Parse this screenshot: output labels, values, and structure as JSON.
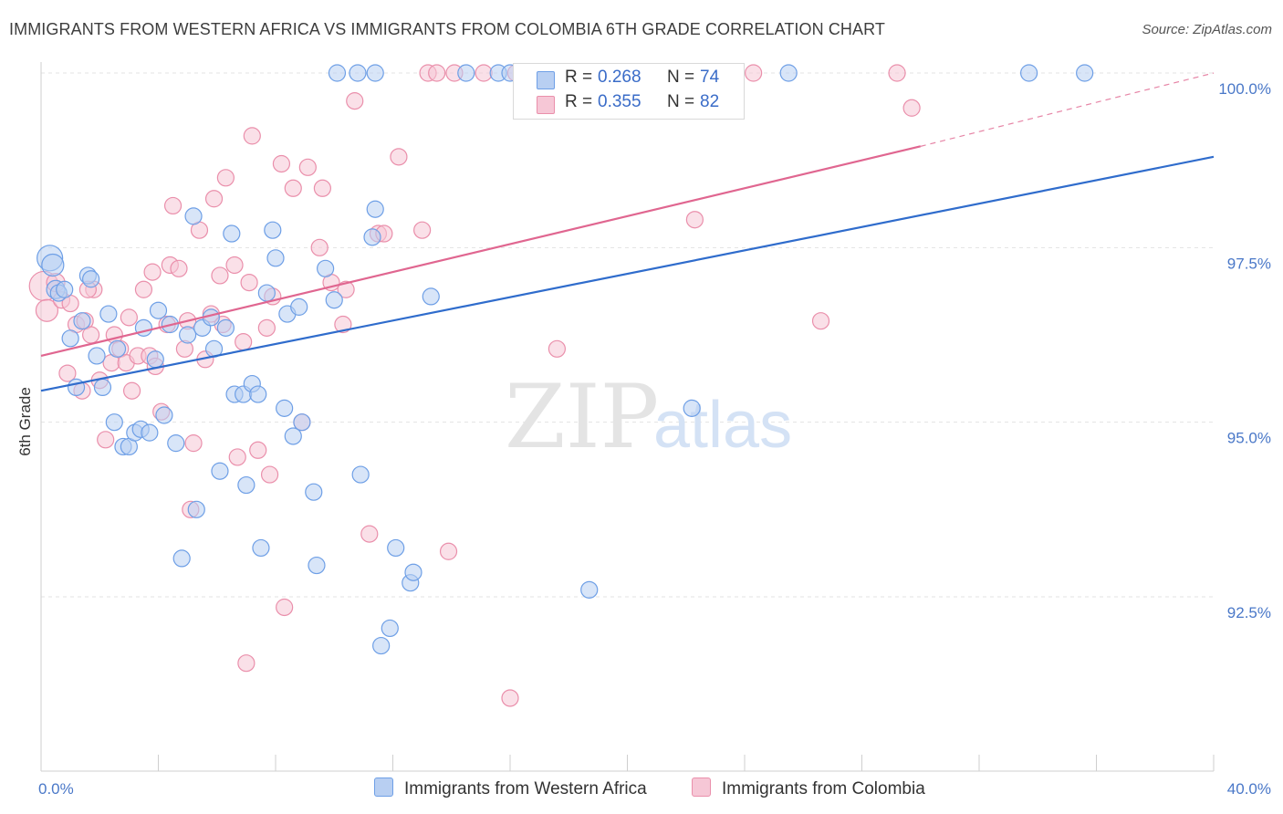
{
  "title": "IMMIGRANTS FROM WESTERN AFRICA VS IMMIGRANTS FROM COLOMBIA 6TH GRADE CORRELATION CHART",
  "source": "Source: ZipAtlas.com",
  "watermark": {
    "zip": "ZIP",
    "atlas": "atlas"
  },
  "legend": {
    "rows": [
      {
        "r_label": "R =",
        "r_value": "0.268",
        "n_label": "N =",
        "n_value": "74"
      },
      {
        "r_label": "R =",
        "r_value": "0.355",
        "n_label": "N =",
        "n_value": "82"
      }
    ]
  },
  "chart_data": {
    "type": "scatter",
    "title": "IMMIGRANTS FROM WESTERN AFRICA VS IMMIGRANTS FROM COLOMBIA 6TH GRADE CORRELATION CHART",
    "xlabel": "",
    "ylabel": "6th Grade",
    "xlim": [
      0,
      40
    ],
    "ylim": [
      90.3,
      100.4
    ],
    "x_tick_labels": [
      "0.0%",
      "40.0%"
    ],
    "y_ticks": [
      92.5,
      95.0,
      97.5,
      100.0
    ],
    "y_tick_labels": [
      "92.5%",
      "95.0%",
      "97.5%",
      "100.0%"
    ],
    "grid": true,
    "legend_position": "top-center",
    "colors": {
      "blue": "#6e9fe6",
      "blue_fill": "#b8cff2",
      "blue_line": "#2f6ccc",
      "pink": "#ea8fab",
      "pink_fill": "#f6c7d6",
      "pink_line": "#e06690"
    },
    "series": [
      {
        "name": "Immigrants from Western Africa",
        "color": "#2f6ccc",
        "r": 0.268,
        "n": 74,
        "trend": {
          "x": [
            0,
            40
          ],
          "y": [
            95.45,
            98.8
          ]
        },
        "points": [
          {
            "x": 0.3,
            "y": 97.35,
            "s": 14
          },
          {
            "x": 0.4,
            "y": 97.25,
            "s": 12
          },
          {
            "x": 0.5,
            "y": 96.9,
            "s": 10
          },
          {
            "x": 0.6,
            "y": 96.85,
            "s": 9
          },
          {
            "x": 0.8,
            "y": 96.9,
            "s": 9
          },
          {
            "x": 1.0,
            "y": 96.2,
            "s": 9
          },
          {
            "x": 1.2,
            "y": 95.5,
            "s": 9
          },
          {
            "x": 1.4,
            "y": 96.45,
            "s": 9
          },
          {
            "x": 1.6,
            "y": 97.1,
            "s": 9
          },
          {
            "x": 1.7,
            "y": 97.05,
            "s": 9
          },
          {
            "x": 1.9,
            "y": 95.95,
            "s": 9
          },
          {
            "x": 2.1,
            "y": 95.5,
            "s": 9
          },
          {
            "x": 2.3,
            "y": 96.55,
            "s": 9
          },
          {
            "x": 2.5,
            "y": 95.0,
            "s": 9
          },
          {
            "x": 2.6,
            "y": 96.05,
            "s": 9
          },
          {
            "x": 2.8,
            "y": 94.65,
            "s": 9
          },
          {
            "x": 3.0,
            "y": 94.65,
            "s": 9
          },
          {
            "x": 3.2,
            "y": 94.85,
            "s": 9
          },
          {
            "x": 3.4,
            "y": 94.9,
            "s": 9
          },
          {
            "x": 3.5,
            "y": 96.35,
            "s": 9
          },
          {
            "x": 3.7,
            "y": 94.85,
            "s": 9
          },
          {
            "x": 3.9,
            "y": 95.9,
            "s": 9
          },
          {
            "x": 4.0,
            "y": 96.6,
            "s": 9
          },
          {
            "x": 4.2,
            "y": 95.1,
            "s": 9
          },
          {
            "x": 4.4,
            "y": 96.4,
            "s": 9
          },
          {
            "x": 4.6,
            "y": 94.7,
            "s": 9
          },
          {
            "x": 4.8,
            "y": 93.05,
            "s": 9
          },
          {
            "x": 5.0,
            "y": 96.25,
            "s": 9
          },
          {
            "x": 5.2,
            "y": 97.95,
            "s": 9
          },
          {
            "x": 5.3,
            "y": 93.75,
            "s": 9
          },
          {
            "x": 5.5,
            "y": 96.35,
            "s": 9
          },
          {
            "x": 5.8,
            "y": 96.5,
            "s": 9
          },
          {
            "x": 5.9,
            "y": 96.05,
            "s": 9
          },
          {
            "x": 6.1,
            "y": 94.3,
            "s": 9
          },
          {
            "x": 6.3,
            "y": 96.35,
            "s": 9
          },
          {
            "x": 6.5,
            "y": 97.7,
            "s": 9
          },
          {
            "x": 6.6,
            "y": 95.4,
            "s": 9
          },
          {
            "x": 6.9,
            "y": 95.4,
            "s": 9
          },
          {
            "x": 7.0,
            "y": 94.1,
            "s": 9
          },
          {
            "x": 7.2,
            "y": 95.55,
            "s": 9
          },
          {
            "x": 7.4,
            "y": 95.4,
            "s": 9
          },
          {
            "x": 7.5,
            "y": 93.2,
            "s": 9
          },
          {
            "x": 7.7,
            "y": 96.85,
            "s": 9
          },
          {
            "x": 7.9,
            "y": 97.75,
            "s": 9
          },
          {
            "x": 8.0,
            "y": 97.35,
            "s": 9
          },
          {
            "x": 8.3,
            "y": 95.2,
            "s": 9
          },
          {
            "x": 8.4,
            "y": 96.55,
            "s": 9
          },
          {
            "x": 8.6,
            "y": 94.8,
            "s": 9
          },
          {
            "x": 8.8,
            "y": 96.65,
            "s": 9
          },
          {
            "x": 8.9,
            "y": 95.0,
            "s": 9
          },
          {
            "x": 9.3,
            "y": 94.0,
            "s": 9
          },
          {
            "x": 9.4,
            "y": 92.95,
            "s": 9
          },
          {
            "x": 9.7,
            "y": 97.2,
            "s": 9
          },
          {
            "x": 10.0,
            "y": 96.75,
            "s": 9
          },
          {
            "x": 10.1,
            "y": 100.0,
            "s": 9
          },
          {
            "x": 10.8,
            "y": 100.0,
            "s": 9
          },
          {
            "x": 10.9,
            "y": 94.25,
            "s": 9
          },
          {
            "x": 11.3,
            "y": 97.65,
            "s": 9
          },
          {
            "x": 11.4,
            "y": 100.0,
            "s": 9
          },
          {
            "x": 11.4,
            "y": 98.05,
            "s": 9
          },
          {
            "x": 11.6,
            "y": 91.8,
            "s": 9
          },
          {
            "x": 11.9,
            "y": 92.05,
            "s": 9
          },
          {
            "x": 12.1,
            "y": 93.2,
            "s": 9
          },
          {
            "x": 12.6,
            "y": 92.7,
            "s": 9
          },
          {
            "x": 12.7,
            "y": 92.85,
            "s": 9
          },
          {
            "x": 13.3,
            "y": 96.8,
            "s": 9
          },
          {
            "x": 14.5,
            "y": 100.0,
            "s": 9
          },
          {
            "x": 15.6,
            "y": 100.0,
            "s": 9
          },
          {
            "x": 16.0,
            "y": 100.0,
            "s": 9
          },
          {
            "x": 18.7,
            "y": 92.6,
            "s": 9
          },
          {
            "x": 22.2,
            "y": 95.2,
            "s": 9
          },
          {
            "x": 25.5,
            "y": 100.0,
            "s": 9
          },
          {
            "x": 33.7,
            "y": 100.0,
            "s": 9
          },
          {
            "x": 35.6,
            "y": 100.0,
            "s": 9
          }
        ]
      },
      {
        "name": "Immigrants from Colombia",
        "color": "#e06690",
        "r": 0.355,
        "n": 82,
        "trend": {
          "x": [
            0,
            30
          ],
          "y": [
            95.95,
            98.95
          ]
        },
        "trend_dashed": {
          "x": [
            30,
            40
          ],
          "y": [
            98.95,
            100.0
          ]
        },
        "points": [
          {
            "x": 0.1,
            "y": 96.95,
            "s": 16
          },
          {
            "x": 0.2,
            "y": 96.6,
            "s": 12
          },
          {
            "x": 0.5,
            "y": 97.0,
            "s": 10
          },
          {
            "x": 0.7,
            "y": 96.75,
            "s": 9
          },
          {
            "x": 0.9,
            "y": 95.7,
            "s": 9
          },
          {
            "x": 1.0,
            "y": 96.7,
            "s": 9
          },
          {
            "x": 1.2,
            "y": 96.4,
            "s": 9
          },
          {
            "x": 1.4,
            "y": 95.45,
            "s": 9
          },
          {
            "x": 1.5,
            "y": 96.45,
            "s": 9
          },
          {
            "x": 1.7,
            "y": 96.25,
            "s": 9
          },
          {
            "x": 1.8,
            "y": 96.9,
            "s": 9
          },
          {
            "x": 2.0,
            "y": 95.6,
            "s": 9
          },
          {
            "x": 2.2,
            "y": 94.75,
            "s": 9
          },
          {
            "x": 2.4,
            "y": 95.85,
            "s": 9
          },
          {
            "x": 2.5,
            "y": 96.25,
            "s": 9
          },
          {
            "x": 2.7,
            "y": 96.05,
            "s": 9
          },
          {
            "x": 2.9,
            "y": 95.85,
            "s": 9
          },
          {
            "x": 3.0,
            "y": 96.5,
            "s": 9
          },
          {
            "x": 3.1,
            "y": 95.45,
            "s": 9
          },
          {
            "x": 3.3,
            "y": 95.95,
            "s": 9
          },
          {
            "x": 3.5,
            "y": 96.9,
            "s": 9
          },
          {
            "x": 3.7,
            "y": 95.95,
            "s": 9
          },
          {
            "x": 3.8,
            "y": 97.15,
            "s": 9
          },
          {
            "x": 3.9,
            "y": 95.8,
            "s": 9
          },
          {
            "x": 4.1,
            "y": 95.15,
            "s": 9
          },
          {
            "x": 4.3,
            "y": 96.4,
            "s": 9
          },
          {
            "x": 4.4,
            "y": 97.25,
            "s": 9
          },
          {
            "x": 4.5,
            "y": 98.1,
            "s": 9
          },
          {
            "x": 4.7,
            "y": 97.2,
            "s": 9
          },
          {
            "x": 4.9,
            "y": 96.05,
            "s": 9
          },
          {
            "x": 5.0,
            "y": 96.45,
            "s": 9
          },
          {
            "x": 5.1,
            "y": 93.75,
            "s": 9
          },
          {
            "x": 5.2,
            "y": 94.7,
            "s": 9
          },
          {
            "x": 5.4,
            "y": 97.75,
            "s": 9
          },
          {
            "x": 5.6,
            "y": 95.9,
            "s": 9
          },
          {
            "x": 5.8,
            "y": 96.55,
            "s": 9
          },
          {
            "x": 5.9,
            "y": 98.2,
            "s": 9
          },
          {
            "x": 6.1,
            "y": 97.1,
            "s": 9
          },
          {
            "x": 6.2,
            "y": 96.4,
            "s": 9
          },
          {
            "x": 6.3,
            "y": 98.5,
            "s": 9
          },
          {
            "x": 6.6,
            "y": 97.25,
            "s": 9
          },
          {
            "x": 6.7,
            "y": 94.5,
            "s": 9
          },
          {
            "x": 6.9,
            "y": 96.15,
            "s": 9
          },
          {
            "x": 7.1,
            "y": 97.0,
            "s": 9
          },
          {
            "x": 7.2,
            "y": 99.1,
            "s": 9
          },
          {
            "x": 7.4,
            "y": 94.6,
            "s": 9
          },
          {
            "x": 7.7,
            "y": 96.35,
            "s": 9
          },
          {
            "x": 7.8,
            "y": 94.25,
            "s": 9
          },
          {
            "x": 7.9,
            "y": 96.8,
            "s": 9
          },
          {
            "x": 8.2,
            "y": 98.7,
            "s": 9
          },
          {
            "x": 8.3,
            "y": 92.35,
            "s": 9
          },
          {
            "x": 8.6,
            "y": 98.35,
            "s": 9
          },
          {
            "x": 8.9,
            "y": 95.0,
            "s": 9
          },
          {
            "x": 9.1,
            "y": 98.65,
            "s": 9
          },
          {
            "x": 9.5,
            "y": 97.5,
            "s": 9
          },
          {
            "x": 9.6,
            "y": 98.35,
            "s": 9
          },
          {
            "x": 9.9,
            "y": 97.0,
            "s": 9
          },
          {
            "x": 10.3,
            "y": 96.4,
            "s": 9
          },
          {
            "x": 10.4,
            "y": 96.9,
            "s": 9
          },
          {
            "x": 10.7,
            "y": 99.6,
            "s": 9
          },
          {
            "x": 11.2,
            "y": 93.4,
            "s": 9
          },
          {
            "x": 11.5,
            "y": 97.7,
            "s": 9
          },
          {
            "x": 11.7,
            "y": 97.7,
            "s": 9
          },
          {
            "x": 12.2,
            "y": 98.8,
            "s": 9
          },
          {
            "x": 13.0,
            "y": 97.75,
            "s": 9
          },
          {
            "x": 13.2,
            "y": 100.0,
            "s": 9
          },
          {
            "x": 13.5,
            "y": 100.0,
            "s": 9
          },
          {
            "x": 13.9,
            "y": 93.15,
            "s": 9
          },
          {
            "x": 14.1,
            "y": 100.0,
            "s": 9
          },
          {
            "x": 15.1,
            "y": 100.0,
            "s": 9
          },
          {
            "x": 16.2,
            "y": 100.0,
            "s": 9
          },
          {
            "x": 16.0,
            "y": 91.05,
            "s": 9
          },
          {
            "x": 17.6,
            "y": 96.05,
            "s": 9
          },
          {
            "x": 17.9,
            "y": 100.0,
            "s": 9
          },
          {
            "x": 20.2,
            "y": 100.0,
            "s": 9
          },
          {
            "x": 22.3,
            "y": 97.9,
            "s": 9
          },
          {
            "x": 24.3,
            "y": 100.0,
            "s": 9
          },
          {
            "x": 26.6,
            "y": 96.45,
            "s": 9
          },
          {
            "x": 29.2,
            "y": 100.0,
            "s": 9
          },
          {
            "x": 29.7,
            "y": 99.5,
            "s": 9
          },
          {
            "x": 7.0,
            "y": 91.55,
            "s": 9
          },
          {
            "x": 1.6,
            "y": 96.9,
            "s": 9
          }
        ]
      }
    ]
  }
}
